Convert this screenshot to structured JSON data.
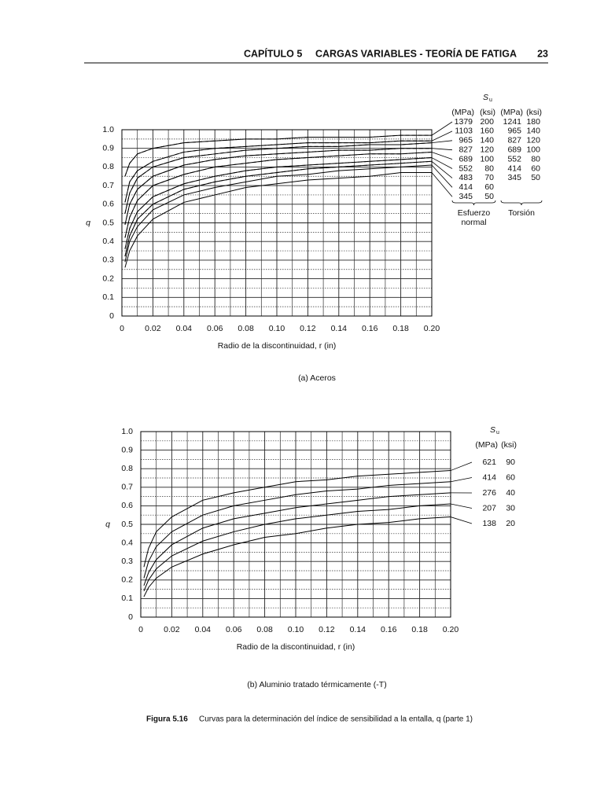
{
  "header": {
    "chapter": "CAPÍTULO 5",
    "title": "CARGAS VARIABLES - TEORÍA DE FATIGA",
    "page": "23"
  },
  "chart_data": [
    {
      "type": "line",
      "caption": "(a) Aceros",
      "xlabel": "Radio de la discontinuidad, r (in)",
      "ylabel": "q",
      "xlim": [
        0,
        0.2
      ],
      "ylim": [
        0,
        1
      ],
      "xticks": [
        0,
        0.02,
        0.04,
        0.06,
        0.08,
        {
          "value": 0.1,
          "label": "0.10"
        },
        0.12,
        0.14,
        0.16,
        0.18,
        {
          "value": 0.2,
          "label": "0.20"
        }
      ],
      "yticks": [
        0,
        0.1,
        0.2,
        0.3,
        0.4,
        0.5,
        0.6,
        0.7,
        0.8,
        0.9,
        {
          "value": 1,
          "label": "1.0"
        }
      ],
      "grid": true,
      "legend_title": "S",
      "legend_title_sub": "u",
      "x": [
        0.002,
        0.005,
        0.01,
        0.02,
        0.04,
        0.06,
        0.08,
        0.1,
        0.12,
        0.14,
        0.16,
        0.18,
        0.2
      ],
      "groups": [
        {
          "label": [
            "Esfuerzo",
            "normal"
          ],
          "headers": [
            "(MPa)",
            "(ksi)"
          ],
          "dashed": false,
          "series": [
            {
              "name": "1379",
              "ksi": "200",
              "color": "#000",
              "values": [
                0.75,
                0.82,
                0.87,
                0.9,
                0.93,
                0.94,
                0.95,
                0.95,
                0.96,
                0.96,
                0.96,
                0.97,
                0.97
              ]
            },
            {
              "name": "1103",
              "ksi": "160",
              "color": "#000",
              "values": [
                0.61,
                0.72,
                0.78,
                0.83,
                0.88,
                0.9,
                0.91,
                0.92,
                0.93,
                0.93,
                0.93,
                0.94,
                0.94
              ]
            },
            {
              "name": "965",
              "ksi": "140",
              "color": "#000",
              "values": [
                0.55,
                0.66,
                0.74,
                0.8,
                0.85,
                0.87,
                0.89,
                0.9,
                0.91,
                0.91,
                0.92,
                0.92,
                0.93
              ]
            },
            {
              "name": "827",
              "ksi": "120",
              "color": "#000",
              "values": [
                0.49,
                0.6,
                0.68,
                0.75,
                0.81,
                0.84,
                0.86,
                0.87,
                0.88,
                0.89,
                0.89,
                0.9,
                0.9
              ]
            },
            {
              "name": "689",
              "ksi": "100",
              "color": "#000",
              "values": [
                0.42,
                0.53,
                0.62,
                0.7,
                0.76,
                0.8,
                0.82,
                0.84,
                0.85,
                0.86,
                0.87,
                0.87,
                0.88
              ]
            },
            {
              "name": "552",
              "ksi": "80",
              "color": "#000",
              "values": [
                0.36,
                0.47,
                0.56,
                0.64,
                0.71,
                0.75,
                0.78,
                0.8,
                0.81,
                0.82,
                0.83,
                0.84,
                0.85
              ]
            },
            {
              "name": "483",
              "ksi": "70",
              "color": "#000",
              "values": [
                0.32,
                0.43,
                0.52,
                0.6,
                0.68,
                0.72,
                0.75,
                0.77,
                0.79,
                0.8,
                0.81,
                0.82,
                0.83
              ]
            },
            {
              "name": "414",
              "ksi": "60",
              "color": "#000",
              "values": [
                0.29,
                0.4,
                0.48,
                0.57,
                0.65,
                0.69,
                0.72,
                0.75,
                0.76,
                0.78,
                0.79,
                0.8,
                0.81
              ]
            },
            {
              "name": "345",
              "ksi": "50",
              "color": "#000",
              "values": [
                0.26,
                0.35,
                0.43,
                0.52,
                0.61,
                0.65,
                0.69,
                0.71,
                0.73,
                0.74,
                0.75,
                0.77,
                0.77
              ]
            }
          ]
        },
        {
          "label": [
            "Torsión"
          ],
          "headers": [
            "(MPa)",
            "(ksi)"
          ],
          "dashed": true,
          "series": [
            {
              "name": "1241",
              "ksi": "180",
              "color": "#000",
              "values": [
                0.75,
                0.82,
                0.87,
                0.9,
                0.93,
                0.94,
                0.95,
                0.95,
                0.96,
                0.96,
                0.96,
                0.97,
                0.97
              ]
            },
            {
              "name": "965",
              "ksi": "140",
              "color": "#000",
              "values": [
                0.61,
                0.72,
                0.78,
                0.83,
                0.88,
                0.9,
                0.91,
                0.92,
                0.93,
                0.93,
                0.93,
                0.94,
                0.94
              ]
            },
            {
              "name": "827",
              "ksi": "120",
              "color": "#000",
              "values": [
                0.55,
                0.66,
                0.74,
                0.8,
                0.85,
                0.87,
                0.89,
                0.9,
                0.91,
                0.91,
                0.92,
                0.92,
                0.93
              ]
            },
            {
              "name": "689",
              "ksi": "100",
              "color": "#000",
              "values": [
                0.49,
                0.6,
                0.68,
                0.75,
                0.81,
                0.84,
                0.86,
                0.87,
                0.88,
                0.89,
                0.89,
                0.9,
                0.9
              ]
            },
            {
              "name": "552",
              "ksi": "80",
              "color": "#000",
              "values": [
                0.42,
                0.53,
                0.62,
                0.7,
                0.76,
                0.8,
                0.82,
                0.84,
                0.85,
                0.86,
                0.87,
                0.87,
                0.88
              ]
            },
            {
              "name": "414",
              "ksi": "60",
              "color": "#000",
              "values": [
                0.36,
                0.47,
                0.56,
                0.64,
                0.71,
                0.75,
                0.78,
                0.8,
                0.81,
                0.82,
                0.83,
                0.84,
                0.85
              ]
            },
            {
              "name": "345",
              "ksi": "50",
              "color": "#000",
              "values": [
                0.32,
                0.43,
                0.52,
                0.6,
                0.68,
                0.72,
                0.75,
                0.77,
                0.79,
                0.8,
                0.81,
                0.82,
                0.83
              ]
            }
          ]
        }
      ]
    },
    {
      "type": "line",
      "caption": "(b) Aluminio tratado térmicamente (-T)",
      "xlabel": "Radio de la discontinuidad, r (in)",
      "ylabel": "q",
      "xlim": [
        0,
        0.2
      ],
      "ylim": [
        0,
        1
      ],
      "xticks": [
        0,
        0.02,
        0.04,
        0.06,
        0.08,
        {
          "value": 0.1,
          "label": "0.10"
        },
        0.12,
        0.14,
        0.16,
        0.18,
        {
          "value": 0.2,
          "label": "0.20"
        }
      ],
      "yticks": [
        0,
        0.1,
        0.2,
        0.3,
        0.4,
        0.5,
        0.6,
        0.7,
        0.8,
        0.9,
        {
          "value": 1,
          "label": "1.0"
        }
      ],
      "grid": true,
      "legend_title": "S",
      "legend_title_sub": "u",
      "x": [
        0.002,
        0.005,
        0.01,
        0.02,
        0.04,
        0.06,
        0.08,
        0.1,
        0.12,
        0.14,
        0.16,
        0.18,
        0.2
      ],
      "groups": [
        {
          "headers": [
            "(MPa)",
            "(ksi)"
          ],
          "dashed": false,
          "series": [
            {
              "name": "621",
              "ksi": "90",
              "color": "#000",
              "values": [
                0.27,
                0.37,
                0.46,
                0.54,
                0.63,
                0.67,
                0.7,
                0.73,
                0.74,
                0.76,
                0.77,
                0.78,
                0.79
              ]
            },
            {
              "name": "414",
              "ksi": "60",
              "color": "#000",
              "values": [
                0.21,
                0.3,
                0.38,
                0.46,
                0.55,
                0.6,
                0.63,
                0.66,
                0.68,
                0.69,
                0.71,
                0.72,
                0.73
              ]
            },
            {
              "name": "276",
              "ksi": "40",
              "color": "#000",
              "values": [
                0.17,
                0.24,
                0.31,
                0.39,
                0.48,
                0.53,
                0.56,
                0.59,
                0.61,
                0.63,
                0.65,
                0.66,
                0.67
              ]
            },
            {
              "name": "207",
              "ksi": "30",
              "color": "#000",
              "values": [
                0.14,
                0.2,
                0.26,
                0.33,
                0.41,
                0.46,
                0.5,
                0.53,
                0.55,
                0.57,
                0.58,
                0.6,
                0.61
              ]
            },
            {
              "name": "138",
              "ksi": "20",
              "color": "#000",
              "values": [
                0.11,
                0.16,
                0.21,
                0.27,
                0.34,
                0.39,
                0.43,
                0.45,
                0.48,
                0.5,
                0.51,
                0.53,
                0.54
              ]
            }
          ]
        }
      ]
    }
  ],
  "figure": {
    "number": "Figura 5.16",
    "text": "Curvas para la determinación del índice de sensibilidad a la entalla, q (parte 1)"
  }
}
